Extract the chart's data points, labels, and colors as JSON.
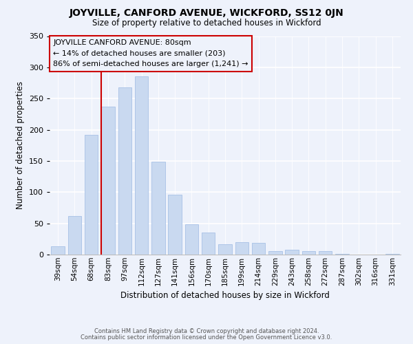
{
  "title": "JOYVILLE, CANFORD AVENUE, WICKFORD, SS12 0JN",
  "subtitle": "Size of property relative to detached houses in Wickford",
  "xlabel": "Distribution of detached houses by size in Wickford",
  "ylabel": "Number of detached properties",
  "bar_labels": [
    "39sqm",
    "54sqm",
    "68sqm",
    "83sqm",
    "97sqm",
    "112sqm",
    "127sqm",
    "141sqm",
    "156sqm",
    "170sqm",
    "185sqm",
    "199sqm",
    "214sqm",
    "229sqm",
    "243sqm",
    "258sqm",
    "272sqm",
    "287sqm",
    "302sqm",
    "316sqm",
    "331sqm"
  ],
  "bar_values": [
    13,
    62,
    192,
    237,
    268,
    285,
    149,
    96,
    48,
    35,
    17,
    20,
    19,
    5,
    8,
    6,
    6,
    1,
    0,
    0,
    1
  ],
  "bar_color": "#c9d9f0",
  "bar_edge_color": "#aec6e8",
  "vline_x_index": 3,
  "vline_color": "#cc0000",
  "annotation_line1": "JOYVILLE CANFORD AVENUE: 80sqm",
  "annotation_line2": "← 14% of detached houses are smaller (203)",
  "annotation_line3": "86% of semi-detached houses are larger (1,241) →",
  "annotation_box_edgecolor": "#cc0000",
  "ylim": [
    0,
    350
  ],
  "yticks": [
    0,
    50,
    100,
    150,
    200,
    250,
    300,
    350
  ],
  "footer1": "Contains HM Land Registry data © Crown copyright and database right 2024.",
  "footer2": "Contains public sector information licensed under the Open Government Licence v3.0.",
  "bg_color": "#eef2fb"
}
